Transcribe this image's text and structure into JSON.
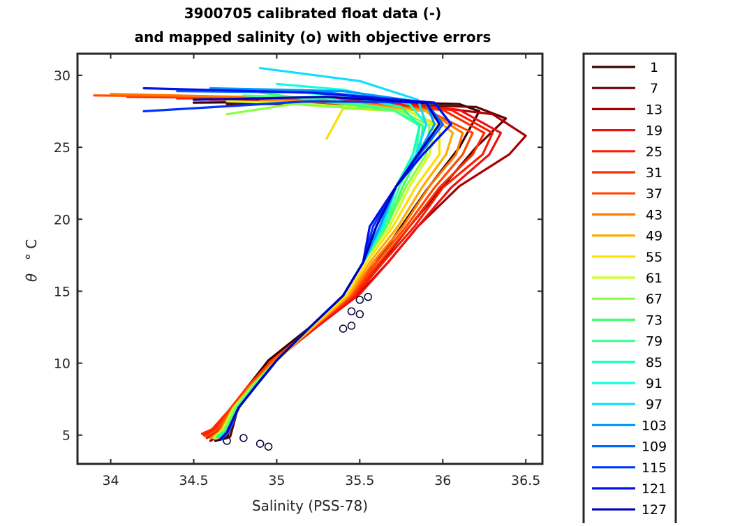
{
  "chart_data": {
    "type": "line",
    "title": [
      "3900705 calibrated float data (-)",
      "and mapped salinity (o) with objective errors"
    ],
    "xlabel": "Salinity (PSS-78)",
    "ylabel_symbol": "θ",
    "ylabel_unit": "° C",
    "xlim": [
      33.8,
      36.6
    ],
    "ylim": [
      3,
      31.5
    ],
    "xticks": [
      34,
      34.5,
      35,
      35.5,
      36,
      36.5
    ],
    "xtick_labels": [
      "34",
      "34.5",
      "35",
      "35.5",
      "36",
      "36.5"
    ],
    "yticks": [
      5,
      10,
      15,
      20,
      25,
      30
    ],
    "ytick_labels": [
      "5",
      "10",
      "15",
      "20",
      "25",
      "30"
    ],
    "grid": false,
    "legend": {
      "location": "outside-right",
      "entries": [
        "1",
        "7",
        "13",
        "19",
        "25",
        "31",
        "37",
        "43",
        "49",
        "55",
        "61",
        "67",
        "73",
        "79",
        "85",
        "91",
        "97",
        "103",
        "109",
        "115",
        "121",
        "127"
      ],
      "colors": [
        "#3a0000",
        "#6a0000",
        "#aa0000",
        "#ee1010",
        "#ff1a00",
        "#ff2a00",
        "#ff4800",
        "#ff7800",
        "#ffaa00",
        "#ffdd00",
        "#ccff22",
        "#88ff44",
        "#44ff66",
        "#44ff99",
        "#11ffbb",
        "#11ffdd",
        "#11ddff",
        "#0099ff",
        "#0066ff",
        "#0033ff",
        "#0011ee",
        "#0000bb"
      ]
    },
    "series": [
      {
        "name": "1",
        "color": "#3a0000",
        "x": [
          34.63,
          34.7,
          34.75,
          34.8,
          34.95,
          35.2,
          35.45,
          35.6,
          35.75,
          35.9,
          36.1,
          36.22,
          36.1,
          35.5,
          34.5
        ],
        "y": [
          4.6,
          4.8,
          6.6,
          8,
          10.2,
          12.5,
          14.8,
          17,
          19.5,
          22,
          25,
          27.5,
          28,
          28.2,
          28.1
        ]
      },
      {
        "name": "7",
        "color": "#6a0000",
        "x": [
          34.65,
          34.72,
          34.76,
          34.82,
          34.97,
          35.22,
          35.47,
          35.63,
          35.8,
          35.98,
          36.2,
          36.38,
          36.2,
          35.6,
          34.7
        ],
        "y": [
          4.7,
          4.9,
          6.6,
          8,
          10.2,
          12.5,
          14.8,
          17,
          19.5,
          22,
          25,
          27,
          27.8,
          28,
          28
        ]
      },
      {
        "name": "13",
        "color": "#aa0000",
        "x": [
          34.6,
          34.66,
          34.74,
          34.85,
          35.0,
          35.25,
          35.5,
          35.67,
          35.85,
          36.1,
          36.4,
          36.5,
          36.3,
          35.8,
          35.0
        ],
        "y": [
          4.6,
          5,
          6.6,
          8.2,
          10.3,
          12.6,
          14.9,
          17,
          19.5,
          22.3,
          24.5,
          25.8,
          27.3,
          28,
          28.3
        ]
      },
      {
        "name": "19",
        "color": "#ee1010",
        "x": [
          34.58,
          34.64,
          34.73,
          34.84,
          34.99,
          35.24,
          35.5,
          35.67,
          35.85,
          36.05,
          36.28,
          36.35,
          36.1,
          35.5,
          34.6
        ],
        "y": [
          4.8,
          5.2,
          6.6,
          8.2,
          10.2,
          12.5,
          14.8,
          17,
          19.5,
          22.2,
          24.5,
          26,
          27.6,
          28.3,
          28.3
        ]
      },
      {
        "name": "25",
        "color": "#ff1a00",
        "x": [
          34.56,
          34.62,
          34.72,
          34.83,
          34.98,
          35.23,
          35.48,
          35.64,
          35.83,
          36.0,
          36.24,
          36.3,
          36.05,
          35.3,
          34.4
        ],
        "y": [
          5,
          5.4,
          6.7,
          8.3,
          10.2,
          12.5,
          14.8,
          17,
          19.5,
          22.2,
          24.5,
          26,
          27.6,
          28.4,
          28.4
        ]
      },
      {
        "name": "31",
        "color": "#ff2a00",
        "x": [
          34.55,
          34.61,
          34.71,
          34.82,
          34.97,
          35.22,
          35.46,
          35.62,
          35.8,
          35.98,
          36.18,
          36.25,
          36.0,
          35.0,
          34.1
        ],
        "y": [
          5.1,
          5.4,
          6.7,
          8.3,
          10.2,
          12.5,
          14.7,
          17,
          19.5,
          22.2,
          24.5,
          26,
          27.6,
          28.4,
          28.5
        ]
      },
      {
        "name": "37",
        "color": "#ff4800",
        "x": [
          34.57,
          34.63,
          34.72,
          34.83,
          34.98,
          35.22,
          35.45,
          35.6,
          35.78,
          35.95,
          36.12,
          36.18,
          35.9,
          34.8,
          33.9
        ],
        "y": [
          4.9,
          5.3,
          6.7,
          8.3,
          10.2,
          12.5,
          14.7,
          17,
          19.5,
          22.2,
          24.5,
          26,
          27.6,
          28.5,
          28.6
        ]
      },
      {
        "name": "43",
        "color": "#ff7800",
        "x": [
          34.6,
          34.65,
          34.73,
          34.84,
          34.99,
          35.22,
          35.44,
          35.58,
          35.76,
          35.92,
          36.08,
          36.12,
          35.9,
          35.2,
          34.0
        ],
        "y": [
          4.8,
          5.2,
          6.8,
          8.4,
          10.2,
          12.5,
          14.7,
          17,
          19.5,
          22.3,
          24.5,
          26,
          27.6,
          28.4,
          28.7
        ]
      },
      {
        "name": "49",
        "color": "#ffaa00",
        "x": [
          34.62,
          34.67,
          34.74,
          34.85,
          35.0,
          35.22,
          35.43,
          35.56,
          35.73,
          35.88,
          36.02,
          36.06,
          35.9,
          35.3,
          34.9
        ],
        "y": [
          4.9,
          5.3,
          6.8,
          8.4,
          10.2,
          12.5,
          14.7,
          17,
          19.5,
          22.3,
          24.5,
          26,
          27.5,
          28.2,
          28.2
        ]
      },
      {
        "name": "55",
        "color": "#ffdd00",
        "x": [
          34.63,
          34.68,
          34.75,
          34.86,
          35.0,
          35.21,
          35.42,
          35.54,
          35.7,
          35.84,
          35.98,
          35.98,
          35.8,
          35.4,
          35.3
        ],
        "y": [
          4.9,
          5.3,
          6.8,
          8.4,
          10.2,
          12.5,
          14.7,
          17,
          19.5,
          22.3,
          24.5,
          26.5,
          27.5,
          27.7,
          25.6
        ]
      },
      {
        "name": "61",
        "color": "#ccff22",
        "x": [
          34.62,
          34.67,
          34.74,
          34.86,
          35.0,
          35.2,
          35.4,
          35.52,
          35.68,
          35.8,
          35.92,
          35.95,
          35.8,
          35.2,
          34.7
        ],
        "y": [
          4.8,
          5.3,
          6.9,
          8.5,
          10.2,
          12.5,
          14.7,
          17,
          19.5,
          22.3,
          24.5,
          26.5,
          27.5,
          28,
          28.2
        ]
      },
      {
        "name": "67",
        "color": "#88ff44",
        "x": [
          34.63,
          34.68,
          34.75,
          34.86,
          35.0,
          35.2,
          35.4,
          35.52,
          35.66,
          35.78,
          35.9,
          35.92,
          35.75,
          35.1,
          34.7
        ],
        "y": [
          4.8,
          5.3,
          6.9,
          8.5,
          10.2,
          12.5,
          14.7,
          17,
          19.5,
          22.3,
          24.5,
          26.5,
          27.5,
          28,
          27.3
        ]
      },
      {
        "name": "73",
        "color": "#44ff66",
        "x": [
          34.64,
          34.69,
          34.76,
          34.87,
          35.0,
          35.2,
          35.4,
          35.52,
          35.66,
          35.76,
          35.86,
          35.88,
          35.7,
          35.2,
          34.9
        ],
        "y": [
          4.9,
          5.3,
          6.9,
          8.5,
          10.2,
          12.5,
          14.7,
          17,
          19.5,
          22.3,
          24.5,
          26.5,
          27.6,
          28.3,
          28.8
        ]
      },
      {
        "name": "79",
        "color": "#44ff99",
        "x": [
          34.65,
          34.7,
          34.76,
          34.87,
          35.0,
          35.2,
          35.4,
          35.52,
          35.65,
          35.74,
          35.84,
          35.86,
          35.7,
          35.3,
          34.8
        ],
        "y": [
          4.9,
          5.3,
          6.9,
          8.5,
          10.2,
          12.5,
          14.7,
          17,
          19.5,
          22.3,
          24.5,
          26.5,
          27.6,
          28.4,
          28.6
        ]
      },
      {
        "name": "85",
        "color": "#11ffbb",
        "x": [
          34.65,
          34.7,
          34.77,
          34.88,
          35.0,
          35.2,
          35.4,
          35.52,
          35.64,
          35.72,
          35.82,
          35.86,
          35.75,
          35.4,
          35.0
        ],
        "y": [
          4.9,
          5.3,
          6.9,
          8.5,
          10.2,
          12.5,
          14.7,
          17,
          19.5,
          22.3,
          24.5,
          26.5,
          27.8,
          28.6,
          28.9
        ]
      },
      {
        "name": "91",
        "color": "#11ffdd",
        "x": [
          34.66,
          34.71,
          34.77,
          34.88,
          35.0,
          35.2,
          35.4,
          35.52,
          35.63,
          35.72,
          35.84,
          35.9,
          35.8,
          35.4,
          35.0
        ],
        "y": [
          4.8,
          5.3,
          6.9,
          8.5,
          10.2,
          12.5,
          14.7,
          17,
          19.5,
          22.3,
          24.5,
          26.6,
          28,
          29,
          29.4
        ]
      },
      {
        "name": "97",
        "color": "#11ddff",
        "x": [
          34.66,
          34.71,
          34.77,
          34.88,
          35.0,
          35.2,
          35.4,
          35.52,
          35.63,
          35.72,
          35.84,
          35.9,
          35.85,
          35.5,
          34.9
        ],
        "y": [
          4.8,
          5.3,
          6.9,
          8.5,
          10.2,
          12.5,
          14.7,
          17,
          19.5,
          22.3,
          24.5,
          26.6,
          28.3,
          29.6,
          30.5
        ]
      },
      {
        "name": "103",
        "color": "#0099ff",
        "x": [
          34.67,
          34.71,
          34.77,
          34.88,
          35.0,
          35.2,
          35.4,
          35.52,
          35.62,
          35.72,
          35.85,
          35.95,
          35.9,
          35.4,
          34.6
        ],
        "y": [
          4.7,
          5.2,
          6.9,
          8.5,
          10.2,
          12.5,
          14.7,
          17,
          19.5,
          22.3,
          24.5,
          26.6,
          28.1,
          28.9,
          29.1
        ]
      },
      {
        "name": "109",
        "color": "#0066ff",
        "x": [
          34.67,
          34.71,
          34.77,
          34.88,
          35.0,
          35.2,
          35.4,
          35.52,
          35.6,
          35.72,
          35.86,
          36.0,
          35.9,
          35.3,
          34.4
        ],
        "y": [
          4.7,
          5.2,
          6.9,
          8.5,
          10.2,
          12.5,
          14.7,
          17,
          19.5,
          22.3,
          24.5,
          26.6,
          28.1,
          28.8,
          28.9
        ]
      },
      {
        "name": "115",
        "color": "#0033ff",
        "x": [
          34.66,
          34.7,
          34.77,
          34.88,
          35.0,
          35.2,
          35.4,
          35.52,
          35.58,
          35.72,
          35.88,
          36.05,
          35.95,
          35.2,
          34.2
        ],
        "y": [
          4.7,
          5.2,
          6.9,
          8.5,
          10.2,
          12.5,
          14.7,
          17,
          19.5,
          22.3,
          24.5,
          26.6,
          28.1,
          28.2,
          27.5
        ]
      },
      {
        "name": "121",
        "color": "#0011ee",
        "x": [
          34.66,
          34.7,
          34.77,
          34.88,
          35.0,
          35.2,
          35.4,
          35.52,
          35.56,
          35.72,
          35.88,
          36.05,
          35.95,
          35.2,
          34.2
        ],
        "y": [
          4.7,
          5.2,
          6.9,
          8.5,
          10.2,
          12.5,
          14.7,
          17,
          19.5,
          22.3,
          24.5,
          26.6,
          28.1,
          28.8,
          29.1
        ]
      },
      {
        "name": "127",
        "color": "#0000bb",
        "x": [
          34.66,
          34.7,
          34.77,
          34.88,
          35.0,
          35.2,
          35.4,
          35.52,
          35.6,
          35.72,
          35.85,
          35.98,
          35.9,
          35.3,
          34.5
        ],
        "y": [
          4.7,
          5.2,
          6.9,
          8.5,
          10.2,
          12.5,
          14.7,
          17,
          19.5,
          22.3,
          24.5,
          26.6,
          28.1,
          28.5,
          28.3
        ]
      }
    ],
    "mapped_markers": {
      "marker": "o",
      "points": [
        {
          "x": 34.7,
          "y": 4.6
        },
        {
          "x": 34.8,
          "y": 4.8
        },
        {
          "x": 34.9,
          "y": 4.4
        },
        {
          "x": 34.95,
          "y": 4.2
        },
        {
          "x": 35.4,
          "y": 12.4
        },
        {
          "x": 35.45,
          "y": 13.6
        },
        {
          "x": 35.5,
          "y": 14.4
        },
        {
          "x": 35.45,
          "y": 12.6
        },
        {
          "x": 35.55,
          "y": 14.6
        },
        {
          "x": 35.5,
          "y": 13.4
        }
      ]
    }
  }
}
